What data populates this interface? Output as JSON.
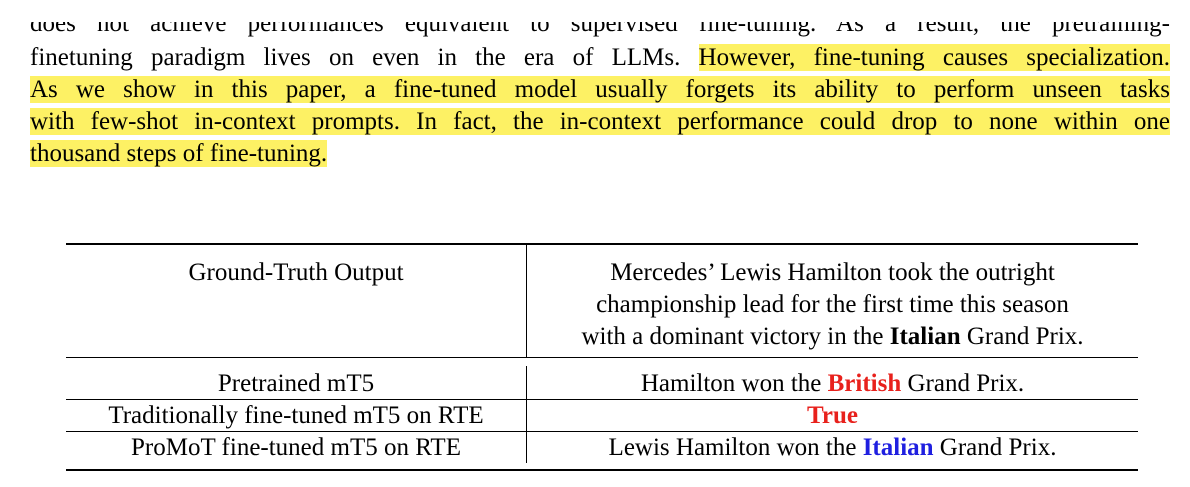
{
  "paragraph": {
    "line0": "does not achieve performances equivalent to supervised fine-tuning. As a result, the pretraining-",
    "line1_plain": "finetuning paradigm lives on even in the era of LLMs. ",
    "line1_hl": "However, fine-tuning causes specialization.",
    "line2": "As we show in this paper, a fine-tuned model usually forgets its ability to perform unseen tasks",
    "line3": "with few-shot in-context prompts. In fact, the in-context performance could drop to none within one",
    "line4": "thousand steps of fine-tuning.",
    "highlight_color": "#fdf164"
  },
  "table": {
    "header": {
      "label": "Ground-Truth Output",
      "value_line1": "Mercedes’ Lewis Hamilton took the outright",
      "value_line2": "championship lead for the first time this season",
      "value_line3_pre": "with a dominant victory in the ",
      "value_line3_bold": "Italian",
      "value_line3_post": " Grand Prix."
    },
    "rows": [
      {
        "label": "Pretrained mT5",
        "pre": "Hamilton won the ",
        "emph": "British",
        "post": " Grand Prix."
      },
      {
        "label": "Traditionally fine-tuned mT5 on RTE",
        "pre": "",
        "emph": "True",
        "post": ""
      },
      {
        "label": "ProMoT fine-tuned mT5 on RTE",
        "pre": "Lewis Hamilton won the ",
        "emph": "Italian",
        "post": " Grand Prix."
      }
    ],
    "colors": {
      "wrong": "#e8211c",
      "correct": "#1f1fe0"
    }
  }
}
